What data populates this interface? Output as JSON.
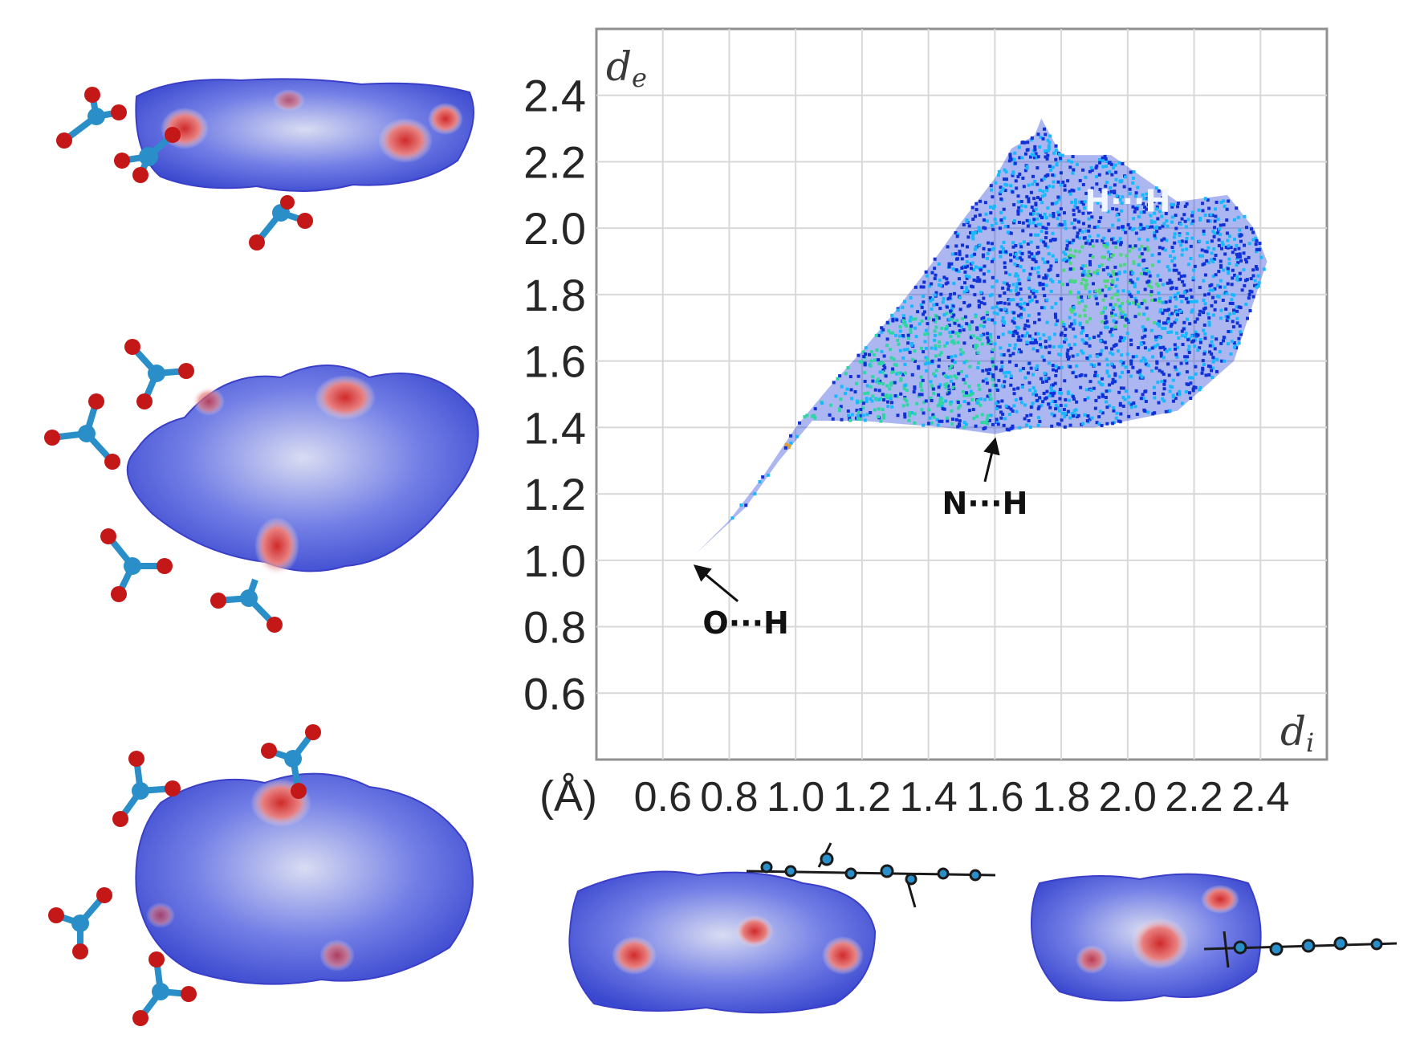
{
  "chart_data": {
    "type": "scatter",
    "title": "",
    "x_axis_letter": "d",
    "x_axis_subscript": "i",
    "y_axis_letter": "d",
    "y_axis_subscript": "e",
    "unit_label": "(Å)",
    "xlim": [
      0.4,
      2.6
    ],
    "ylim": [
      0.4,
      2.6
    ],
    "x_ticks": [
      "0.6",
      "0.8",
      "1.0",
      "1.2",
      "1.4",
      "1.6",
      "1.8",
      "2.0",
      "2.2",
      "2.4"
    ],
    "y_ticks": [
      "2.4",
      "2.2",
      "2.0",
      "1.8",
      "1.6",
      "1.4",
      "1.2",
      "1.0",
      "0.8",
      "0.6"
    ],
    "grid": true,
    "fingerprint_outline": [
      [
        0.7,
        1.02
      ],
      [
        0.8,
        1.12
      ],
      [
        0.9,
        1.25
      ],
      [
        1.0,
        1.4
      ],
      [
        1.1,
        1.52
      ],
      [
        1.2,
        1.63
      ],
      [
        1.3,
        1.75
      ],
      [
        1.4,
        1.88
      ],
      [
        1.5,
        2.02
      ],
      [
        1.6,
        2.15
      ],
      [
        1.65,
        2.24
      ],
      [
        1.72,
        2.28
      ],
      [
        1.74,
        2.33
      ],
      [
        1.8,
        2.22
      ],
      [
        1.95,
        2.22
      ],
      [
        2.05,
        2.15
      ],
      [
        2.15,
        2.08
      ],
      [
        2.3,
        2.1
      ],
      [
        2.38,
        2.0
      ],
      [
        2.42,
        1.9
      ],
      [
        2.32,
        1.6
      ],
      [
        2.15,
        1.45
      ],
      [
        1.9,
        1.4
      ],
      [
        1.7,
        1.4
      ],
      [
        1.6,
        1.38
      ],
      [
        1.45,
        1.4
      ],
      [
        1.2,
        1.42
      ],
      [
        1.05,
        1.42
      ],
      [
        0.95,
        1.3
      ],
      [
        0.85,
        1.16
      ],
      [
        0.7,
        1.02
      ]
    ],
    "dense_regions": [
      {
        "x": [
          1.0,
          1.6
        ],
        "y": [
          1.4,
          1.75
        ],
        "color": "#2fd6a4"
      },
      {
        "x": [
          1.8,
          2.1
        ],
        "y": [
          1.7,
          1.95
        ],
        "color": "#4ad87a"
      },
      {
        "x": [
          0.9,
          1.05
        ],
        "y": [
          1.25,
          1.35
        ],
        "color": "#d8a040"
      }
    ],
    "annotations": [
      {
        "text": "O···H",
        "label_at": [
          0.85,
          0.78
        ],
        "arrow_to": [
          0.7,
          1.0
        ]
      },
      {
        "text": "N···H",
        "label_at": [
          1.57,
          1.14
        ],
        "arrow_to": [
          1.6,
          1.38
        ]
      },
      {
        "text": "H···H",
        "label_at": [
          2.0,
          2.05
        ]
      }
    ]
  },
  "colors": {
    "low_density": "#1030d8",
    "mid_density": "#18b8ff",
    "high_density": "#2fd6a4",
    "peak_density": "#d8a040",
    "surface_blue": "#4a5ee0",
    "surface_white": "#e8e8f2",
    "contact_red": "#d63030",
    "atom_oxygen": "#c41818",
    "atom_central": "#2a8fc8",
    "grid": "#d8d8d8",
    "frame": "#909090"
  },
  "surfaces": [
    {
      "name": "hirshfeld-surface-1",
      "icon": "molecular-surface-with-anions"
    },
    {
      "name": "hirshfeld-surface-2",
      "icon": "molecular-surface-with-anions"
    },
    {
      "name": "hirshfeld-surface-3",
      "icon": "molecular-surface-with-anions"
    },
    {
      "name": "hirshfeld-surface-4",
      "icon": "molecular-surface-with-cation"
    },
    {
      "name": "hirshfeld-surface-5",
      "icon": "molecular-surface-with-cation"
    }
  ]
}
